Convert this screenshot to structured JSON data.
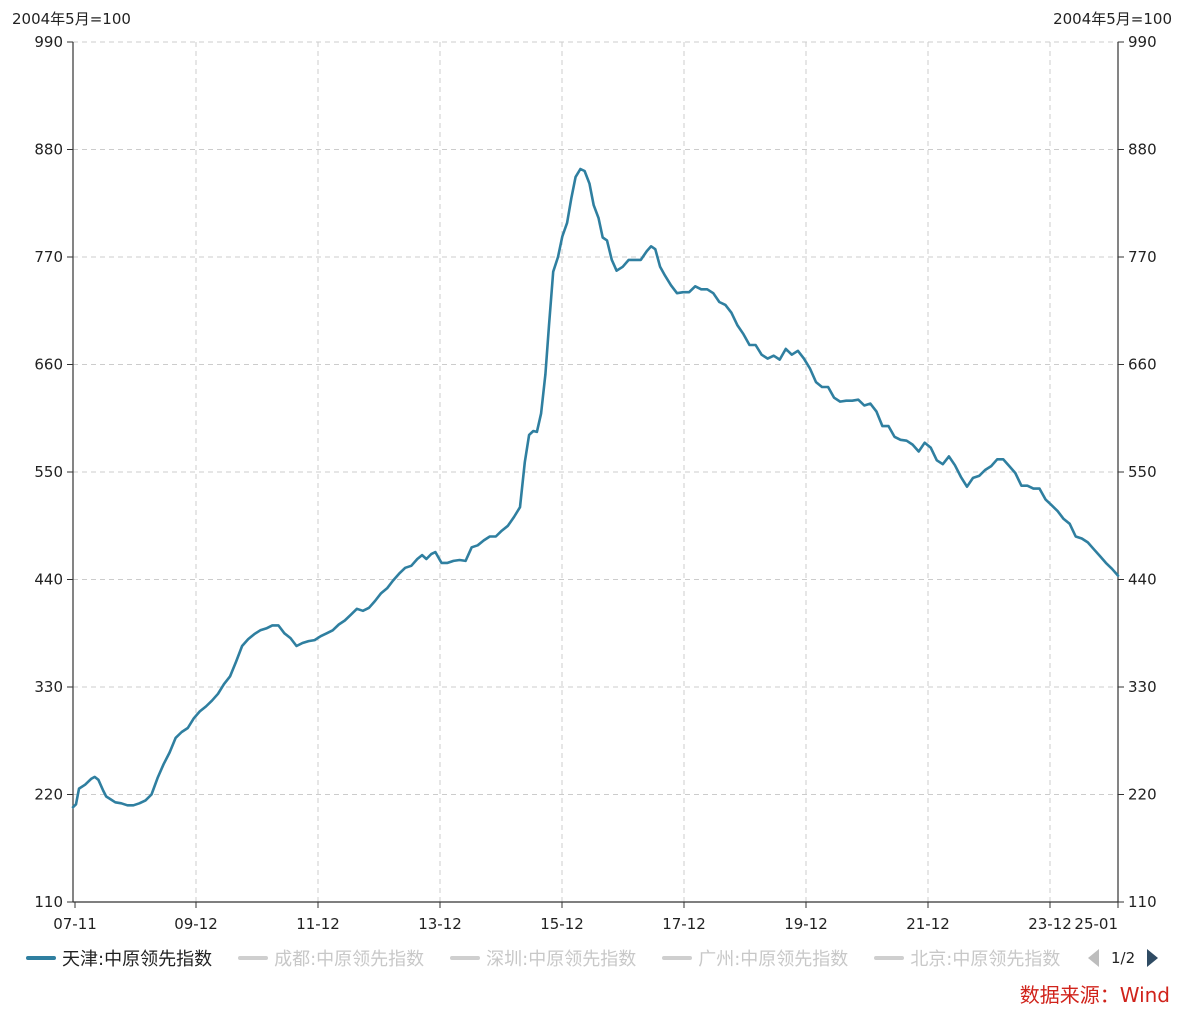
{
  "unit_left": "2004年5月=100",
  "unit_right": "2004年5月=100",
  "legend": [
    {
      "label": "天津:中原领先指数",
      "active": true
    },
    {
      "label": "成都:中原领先指数",
      "active": false
    },
    {
      "label": "深圳:中原领先指数",
      "active": false
    },
    {
      "label": "广州:中原领先指数",
      "active": false
    },
    {
      "label": "北京:中原领先指数",
      "active": false
    }
  ],
  "pager": {
    "text": "1/2"
  },
  "source": "数据来源：Wind",
  "colors": {
    "series": "#2f7fa0",
    "grid": "#cccccc",
    "axis": "#333333",
    "inactive": "#c8c8c8",
    "source": "#d0231b"
  },
  "chart_data": {
    "type": "line",
    "ylim": [
      110,
      990
    ],
    "yticks": [
      110,
      220,
      330,
      440,
      550,
      660,
      770,
      880,
      990
    ],
    "xticks": [
      "07-11",
      "09-12",
      "11-12",
      "13-12",
      "15-12",
      "17-12",
      "19-12",
      "21-12",
      "23-12",
      "25-01"
    ],
    "grid": true,
    "series": [
      {
        "name": "天津:中原领先指数",
        "points": [
          [
            0.0,
            207
          ],
          [
            0.5,
            210
          ],
          [
            1,
            226
          ],
          [
            2,
            230
          ],
          [
            3,
            236
          ],
          [
            3.6,
            238
          ],
          [
            4.2,
            235
          ],
          [
            5,
            224
          ],
          [
            5.5,
            218
          ],
          [
            6,
            216
          ],
          [
            7,
            212
          ],
          [
            8,
            211
          ],
          [
            9,
            209
          ],
          [
            10,
            209
          ],
          [
            11,
            211
          ],
          [
            12,
            214
          ],
          [
            13,
            220
          ],
          [
            14,
            237
          ],
          [
            15,
            251
          ],
          [
            16,
            263
          ],
          [
            17,
            278
          ],
          [
            18,
            284
          ],
          [
            19,
            288
          ],
          [
            20,
            298
          ],
          [
            21,
            305
          ],
          [
            22,
            310
          ],
          [
            23,
            316
          ],
          [
            24,
            323
          ],
          [
            25,
            333
          ],
          [
            26,
            341
          ],
          [
            27,
            356
          ],
          [
            28,
            372
          ],
          [
            29,
            379
          ],
          [
            30,
            384
          ],
          [
            31,
            388
          ],
          [
            32,
            390
          ],
          [
            33,
            393
          ],
          [
            34,
            393
          ],
          [
            35,
            385
          ],
          [
            36,
            380
          ],
          [
            37,
            372
          ],
          [
            38,
            375
          ],
          [
            39,
            377
          ],
          [
            40,
            378
          ],
          [
            41,
            382
          ],
          [
            42,
            385
          ],
          [
            43,
            388
          ],
          [
            44,
            394
          ],
          [
            45,
            398
          ],
          [
            46,
            404
          ],
          [
            47,
            410
          ],
          [
            48,
            408
          ],
          [
            49,
            411
          ],
          [
            50,
            418
          ],
          [
            51,
            426
          ],
          [
            52,
            431
          ],
          [
            53,
            439
          ],
          [
            54,
            446
          ],
          [
            55,
            452
          ],
          [
            56,
            454
          ],
          [
            57,
            461
          ],
          [
            57.8,
            465
          ],
          [
            58.5,
            461
          ],
          [
            59.3,
            466
          ],
          [
            60,
            468
          ],
          [
            61,
            457
          ],
          [
            62,
            457
          ],
          [
            63,
            459
          ],
          [
            64,
            460
          ],
          [
            65,
            459
          ],
          [
            66,
            473
          ],
          [
            67,
            475
          ],
          [
            68,
            480
          ],
          [
            69,
            484
          ],
          [
            70,
            484
          ],
          [
            71,
            490
          ],
          [
            72,
            495
          ],
          [
            73,
            504
          ],
          [
            74,
            514
          ],
          [
            74.8,
            560
          ],
          [
            75.5,
            588
          ],
          [
            76.2,
            592
          ],
          [
            76.8,
            591
          ],
          [
            77.5,
            610
          ],
          [
            78.2,
            650
          ],
          [
            78.8,
            700
          ],
          [
            79.5,
            755
          ],
          [
            80.3,
            770
          ],
          [
            81,
            791
          ],
          [
            81.8,
            805
          ],
          [
            82.5,
            830
          ],
          [
            83.2,
            852
          ],
          [
            84,
            860
          ],
          [
            84.7,
            858
          ],
          [
            85.5,
            845
          ],
          [
            86.2,
            823
          ],
          [
            87,
            810
          ],
          [
            87.7,
            790
          ],
          [
            88.4,
            787
          ],
          [
            89.2,
            767
          ],
          [
            90,
            756
          ],
          [
            91,
            760
          ],
          [
            92,
            767
          ],
          [
            93,
            767
          ],
          [
            94,
            767
          ],
          [
            95,
            776
          ],
          [
            95.7,
            781
          ],
          [
            96.4,
            778
          ],
          [
            97.2,
            760
          ],
          [
            98,
            751
          ],
          [
            99,
            741
          ],
          [
            100,
            733
          ],
          [
            101,
            734
          ],
          [
            102,
            734
          ],
          [
            103,
            740
          ],
          [
            104,
            737
          ],
          [
            105,
            737
          ],
          [
            106,
            733
          ],
          [
            107,
            724
          ],
          [
            108,
            721
          ],
          [
            109,
            713
          ],
          [
            110,
            700
          ],
          [
            111,
            691
          ],
          [
            112,
            680
          ],
          [
            113,
            680
          ],
          [
            114,
            670
          ],
          [
            115,
            666
          ],
          [
            116,
            669
          ],
          [
            117,
            665
          ],
          [
            118,
            676
          ],
          [
            119,
            670
          ],
          [
            120,
            674
          ],
          [
            121,
            666
          ],
          [
            122,
            656
          ],
          [
            123,
            642
          ],
          [
            124,
            637
          ],
          [
            125,
            637
          ],
          [
            126,
            626
          ],
          [
            127,
            622
          ],
          [
            128,
            623
          ],
          [
            129,
            623
          ],
          [
            130,
            624
          ],
          [
            131,
            618
          ],
          [
            132,
            620
          ],
          [
            133,
            612
          ],
          [
            134,
            597
          ],
          [
            135,
            597
          ],
          [
            136,
            586
          ],
          [
            137,
            583
          ],
          [
            138,
            582
          ],
          [
            139,
            578
          ],
          [
            140,
            571
          ],
          [
            141,
            580
          ],
          [
            142,
            575
          ],
          [
            143,
            562
          ],
          [
            144,
            558
          ],
          [
            145,
            566
          ],
          [
            146,
            557
          ],
          [
            147,
            545
          ],
          [
            148,
            535
          ],
          [
            149,
            544
          ],
          [
            150,
            546
          ],
          [
            151,
            552
          ],
          [
            152,
            556
          ],
          [
            153,
            563
          ],
          [
            154,
            563
          ],
          [
            155,
            556
          ],
          [
            156,
            549
          ],
          [
            157,
            536
          ],
          [
            158,
            536
          ],
          [
            159,
            533
          ],
          [
            160,
            533
          ],
          [
            161,
            522
          ],
          [
            162,
            516
          ],
          [
            163,
            510
          ],
          [
            164,
            502
          ],
          [
            165,
            497
          ],
          [
            166,
            484
          ],
          [
            167,
            482
          ],
          [
            168,
            478
          ],
          [
            169,
            471
          ],
          [
            170,
            464
          ],
          [
            171,
            457
          ],
          [
            172,
            451
          ],
          [
            173,
            444
          ]
        ]
      }
    ]
  }
}
